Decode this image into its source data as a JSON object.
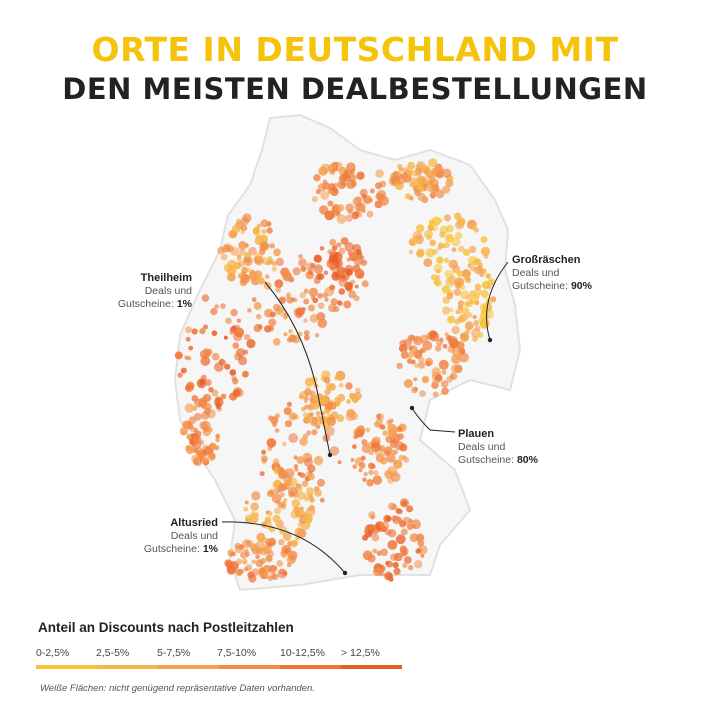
{
  "title": {
    "line1": "ORTE IN DEUTSCHLAND MIT",
    "line2": "DEN MEISTEN DEALBESTELLUNGEN"
  },
  "colors": {
    "title_accent": "#f6c30b",
    "title_dark": "#222222",
    "empty_region": "#ececec",
    "leader_line": "#222222"
  },
  "callouts": [
    {
      "name": "Theilheim",
      "text": "Deals und",
      "text2": "Gutscheine:",
      "value": "1%"
    },
    {
      "name": "Großräschen",
      "text": "Deals und",
      "text2": "Gutscheine:",
      "value": "90%"
    },
    {
      "name": "Plauen",
      "text": "Deals und",
      "text2": "Gutscheine:",
      "value": "80%"
    },
    {
      "name": "Altusried",
      "text": "Deals und",
      "text2": "Gutscheine:",
      "value": "1%"
    }
  ],
  "legend": {
    "title": "Anteil an Discounts nach Postleitzahlen",
    "classes": [
      {
        "label": "0-2,5%",
        "color": "#f7c53a"
      },
      {
        "label": "2,5-5%",
        "color": "#f7b548"
      },
      {
        "label": "5-7,5%",
        "color": "#f4a052"
      },
      {
        "label": "7,5-10%",
        "color": "#f18a4a"
      },
      {
        "label": "10-12,5%",
        "color": "#ee7438"
      },
      {
        "label": "> 12,5%",
        "color": "#e85c25"
      }
    ]
  },
  "footnote": "Weiße Flächen: nicht genügend repräsentative Daten vorhanden."
}
